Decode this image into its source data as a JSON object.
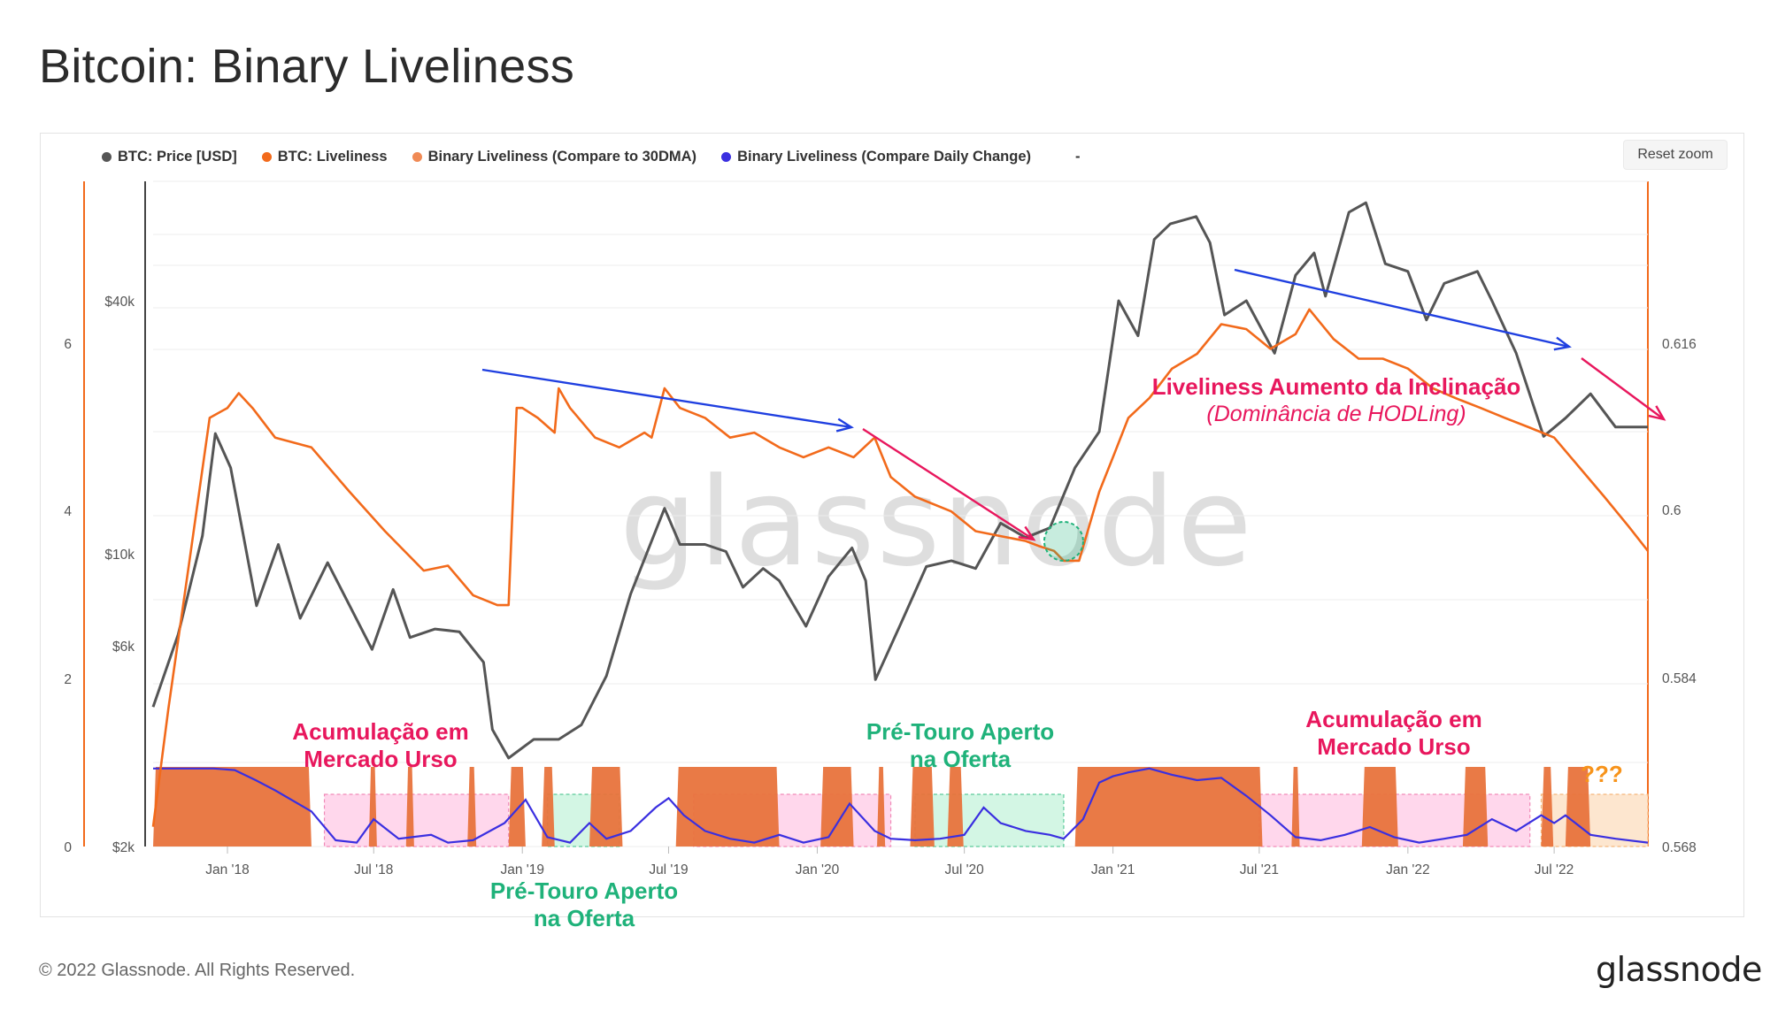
{
  "page": {
    "title": "Bitcoin: Binary Liveliness",
    "copyright": "© 2022 Glassnode. All Rights Reserved.",
    "brand": "glassnode",
    "watermark": "glassnode",
    "reset_zoom": "Reset zoom"
  },
  "legend": [
    {
      "label": "BTC: Price [USD]",
      "color": "#555555"
    },
    {
      "label": "BTC: Liveliness",
      "color": "#f26a1b"
    },
    {
      "label": "Binary Liveliness (Compare to 30DMA)",
      "color": "#f08a55"
    },
    {
      "label": "Binary Liveliness (Compare Daily Change)",
      "color": "#3a2fe0"
    },
    {
      "label": "-",
      "color": ""
    }
  ],
  "annotations": {
    "bear_1": [
      "Acumulação em",
      "Mercado Urso"
    ],
    "bull_1": [
      "Pré-Touro Aperto",
      "na Oferta"
    ],
    "bull_2": [
      "Pré-Touro Aperto",
      "na Oferta"
    ],
    "bear_2": [
      "Acumulação em",
      "Mercado Urso"
    ],
    "unknown": "???",
    "slope_title": "Liveliness Aumento da Inclinação",
    "slope_sub": "(Dominância de HODLing)"
  },
  "colors": {
    "price": "#555555",
    "liveliness": "#f26a1b",
    "binary30": "#e8733c",
    "daily": "#3a2fe0",
    "arrow_blue": "#1f3fe0",
    "arrow_red": "#e8175d",
    "zone_pink": "#ffd7ec",
    "zone_green": "#d3f6e4",
    "zone_orange": "#fde6cf"
  },
  "chart_data": {
    "type": "line",
    "x_ticks": [
      "Jan '18",
      "Jul '18",
      "Jan '19",
      "Jul '19",
      "Jan '20",
      "Jul '20",
      "Jan '21",
      "Jul '21",
      "Jan '22",
      "Jul '22"
    ],
    "x_range": [
      "2017-10-01",
      "2022-10-25"
    ],
    "price_axis": {
      "ticks": [
        "$2k",
        "$6k",
        "$10k",
        "$40k"
      ],
      "scale": "log"
    },
    "liveliness_axis": {
      "ticks": [
        "0.568",
        "0.584",
        "0.6",
        "0.616"
      ],
      "range": [
        0.568,
        0.6355
      ]
    },
    "binary_axis": {
      "ticks": [
        "0",
        "2",
        "4",
        "6"
      ]
    },
    "series": [
      {
        "name": "BTC: Price [USD]",
        "dates": [
          "2017-10-01",
          "2017-11-01",
          "2017-12-01",
          "2017-12-17",
          "2018-01-05",
          "2018-02-06",
          "2018-03-05",
          "2018-04-01",
          "2018-05-05",
          "2018-06-29",
          "2018-07-25",
          "2018-08-15",
          "2018-09-15",
          "2018-10-15",
          "2018-11-14",
          "2018-11-25",
          "2018-12-15",
          "2019-01-15",
          "2019-02-15",
          "2019-03-15",
          "2019-04-15",
          "2019-05-15",
          "2019-06-26",
          "2019-07-15",
          "2019-08-15",
          "2019-09-10",
          "2019-10-01",
          "2019-10-26",
          "2019-11-15",
          "2019-12-18",
          "2020-01-15",
          "2020-02-13",
          "2020-03-01",
          "2020-03-13",
          "2020-04-15",
          "2020-05-15",
          "2020-06-15",
          "2020-07-15",
          "2020-08-15",
          "2020-09-15",
          "2020-10-15",
          "2020-11-15",
          "2020-12-15",
          "2021-01-08",
          "2021-02-01",
          "2021-02-21",
          "2021-03-13",
          "2021-04-14",
          "2021-05-01",
          "2021-05-19",
          "2021-06-15",
          "2021-07-20",
          "2021-08-15",
          "2021-09-07",
          "2021-09-21",
          "2021-10-20",
          "2021-11-10",
          "2021-12-04",
          "2022-01-01",
          "2022-01-24",
          "2022-02-15",
          "2022-03-28",
          "2022-04-15",
          "2022-05-15",
          "2022-06-18",
          "2022-07-15",
          "2022-08-15",
          "2022-09-15",
          "2022-10-25"
        ],
        "values": [
          4300,
          6400,
          11000,
          19300,
          16000,
          7500,
          10500,
          7000,
          9500,
          5900,
          8200,
          6300,
          6600,
          6500,
          5500,
          3800,
          3250,
          3600,
          3600,
          3900,
          5100,
          8000,
          12800,
          10500,
          10500,
          10100,
          8300,
          9200,
          8600,
          6700,
          8800,
          10300,
          8600,
          5000,
          6900,
          9300,
          9600,
          9200,
          11800,
          10900,
          11500,
          16000,
          19500,
          40000,
          33000,
          56000,
          61000,
          63500,
          55000,
          37000,
          40000,
          30000,
          46000,
          52000,
          41000,
          65000,
          68500,
          49000,
          47000,
          36000,
          44000,
          47000,
          40000,
          30000,
          19000,
          21000,
          24000,
          20000,
          20000
        ]
      },
      {
        "name": "BTC: Liveliness",
        "dates": [
          "2017-10-01",
          "2017-10-20",
          "2017-11-15",
          "2017-12-10",
          "2018-01-01",
          "2018-01-15",
          "2018-02-01",
          "2018-03-01",
          "2018-04-15",
          "2018-06-01",
          "2018-07-15",
          "2018-09-01",
          "2018-10-01",
          "2018-11-01",
          "2018-12-01",
          "2018-12-15",
          "2018-12-25",
          "2019-01-01",
          "2019-01-20",
          "2019-02-10",
          "2019-02-15",
          "2019-03-01",
          "2019-04-01",
          "2019-05-01",
          "2019-06-01",
          "2019-06-10",
          "2019-06-26",
          "2019-07-15",
          "2019-08-15",
          "2019-09-15",
          "2019-10-15",
          "2019-11-15",
          "2019-12-15",
          "2020-01-15",
          "2020-02-15",
          "2020-03-12",
          "2020-04-01",
          "2020-05-01",
          "2020-06-15",
          "2020-07-15",
          "2020-08-15",
          "2020-09-15",
          "2020-10-01",
          "2020-10-20",
          "2020-11-01",
          "2020-11-20",
          "2020-12-15",
          "2021-01-01",
          "2021-01-20",
          "2021-02-15",
          "2021-03-15",
          "2021-04-15",
          "2021-05-15",
          "2021-06-15",
          "2021-07-15",
          "2021-08-15",
          "2021-09-01",
          "2021-10-01",
          "2021-11-01",
          "2021-12-01",
          "2022-01-01",
          "2022-02-01",
          "2022-03-01",
          "2022-04-01",
          "2022-05-01",
          "2022-06-01",
          "2022-07-01",
          "2022-08-01",
          "2022-09-01",
          "2022-10-01",
          "2022-10-25"
        ],
        "values": [
          0.57,
          0.582,
          0.597,
          0.6115,
          0.6125,
          0.614,
          0.6125,
          0.6095,
          0.6085,
          0.604,
          0.6,
          0.596,
          0.5965,
          0.5935,
          0.5925,
          0.5925,
          0.6125,
          0.6125,
          0.6115,
          0.61,
          0.6145,
          0.6125,
          0.6095,
          0.6085,
          0.61,
          0.6095,
          0.6145,
          0.6125,
          0.6115,
          0.6095,
          0.61,
          0.6085,
          0.6075,
          0.6085,
          0.6075,
          0.6095,
          0.6055,
          0.6035,
          0.602,
          0.6,
          0.5995,
          0.599,
          0.5985,
          0.598,
          0.597,
          0.597,
          0.604,
          0.6075,
          0.6115,
          0.6135,
          0.6165,
          0.618,
          0.621,
          0.6205,
          0.6185,
          0.62,
          0.6225,
          0.6195,
          0.6175,
          0.6175,
          0.6165,
          0.6145,
          0.6135,
          0.6125,
          0.6115,
          0.6105,
          0.6095,
          0.6065,
          0.6035,
          0.6005,
          0.598
        ]
      }
    ],
    "zones": [
      {
        "type": "bear_accumulation",
        "start": "2018-05-01",
        "end": "2018-12-15"
      },
      {
        "type": "pre_bull_supply_squeeze",
        "start": "2019-02-01",
        "end": "2019-05-01"
      },
      {
        "type": "bear_accumulation",
        "start": "2019-08-01",
        "end": "2020-04-01"
      },
      {
        "type": "pre_bull_supply_squeeze",
        "start": "2020-05-01",
        "end": "2020-11-01"
      },
      {
        "type": "bear_accumulation",
        "start": "2021-07-01",
        "end": "2022-06-01"
      },
      {
        "type": "unknown",
        "start": "2022-06-15",
        "end": "2022-10-25"
      }
    ],
    "binary_on_periods": [
      [
        "2017-10-01",
        "2018-04-15"
      ],
      [
        "2018-06-25",
        "2018-07-05"
      ],
      [
        "2018-08-10",
        "2018-08-20"
      ],
      [
        "2018-10-25",
        "2018-11-05"
      ],
      [
        "2018-12-15",
        "2019-01-05"
      ],
      [
        "2019-01-25",
        "2019-02-10"
      ],
      [
        "2019-03-25",
        "2019-05-05"
      ],
      [
        "2019-07-10",
        "2019-11-15"
      ],
      [
        "2020-01-05",
        "2020-02-15"
      ],
      [
        "2020-03-15",
        "2020-03-25"
      ],
      [
        "2020-04-25",
        "2020-05-25"
      ],
      [
        "2020-06-10",
        "2020-06-30"
      ],
      [
        "2020-11-15",
        "2021-07-05"
      ],
      [
        "2021-08-10",
        "2021-08-20"
      ],
      [
        "2021-11-05",
        "2021-12-20"
      ],
      [
        "2022-03-10",
        "2022-04-10"
      ],
      [
        "2022-06-15",
        "2022-06-30"
      ],
      [
        "2022-07-15",
        "2022-08-15"
      ]
    ],
    "daily_change": {
      "dates": [
        "2017-10-01",
        "2017-11-15",
        "2017-12-15",
        "2018-01-10",
        "2018-02-05",
        "2018-03-01",
        "2018-04-15",
        "2018-05-15",
        "2018-06-10",
        "2018-07-01",
        "2018-08-01",
        "2018-09-10",
        "2018-10-01",
        "2018-11-01",
        "2018-12-10",
        "2019-01-05",
        "2019-02-01",
        "2019-03-01",
        "2019-03-25",
        "2019-04-15",
        "2019-05-15",
        "2019-06-15",
        "2019-07-01",
        "2019-07-20",
        "2019-08-15",
        "2019-09-15",
        "2019-10-15",
        "2019-11-15",
        "2019-12-15",
        "2020-01-15",
        "2020-02-10",
        "2020-03-12",
        "2020-04-01",
        "2020-05-01",
        "2020-06-01",
        "2020-07-01",
        "2020-07-25",
        "2020-08-15",
        "2020-09-15",
        "2020-10-15",
        "2020-11-01",
        "2020-11-25",
        "2020-12-15",
        "2021-01-01",
        "2021-01-20",
        "2021-02-15",
        "2021-03-15",
        "2021-04-15",
        "2021-05-15",
        "2021-06-15",
        "2021-07-15",
        "2021-08-15",
        "2021-09-15",
        "2021-10-15",
        "2021-11-15",
        "2021-12-15",
        "2022-01-15",
        "2022-02-15",
        "2022-03-15",
        "2022-04-15",
        "2022-05-15",
        "2022-06-15",
        "2022-07-01",
        "2022-07-15",
        "2022-08-15",
        "2022-09-15",
        "2022-10-25"
      ],
      "values": [
        1.0,
        1.0,
        1.0,
        0.98,
        0.85,
        0.72,
        0.45,
        0.08,
        0.05,
        0.35,
        0.1,
        0.15,
        0.05,
        0.08,
        0.3,
        0.6,
        0.12,
        0.05,
        0.3,
        0.1,
        0.2,
        0.5,
        0.62,
        0.4,
        0.2,
        0.1,
        0.05,
        0.15,
        0.05,
        0.12,
        0.55,
        0.2,
        0.1,
        0.08,
        0.1,
        0.15,
        0.5,
        0.3,
        0.2,
        0.15,
        0.1,
        0.35,
        0.82,
        0.9,
        0.95,
        1.0,
        0.92,
        0.85,
        0.88,
        0.65,
        0.4,
        0.12,
        0.08,
        0.15,
        0.25,
        0.12,
        0.05,
        0.1,
        0.15,
        0.35,
        0.2,
        0.4,
        0.3,
        0.4,
        0.15,
        0.1,
        0.05
      ]
    }
  }
}
